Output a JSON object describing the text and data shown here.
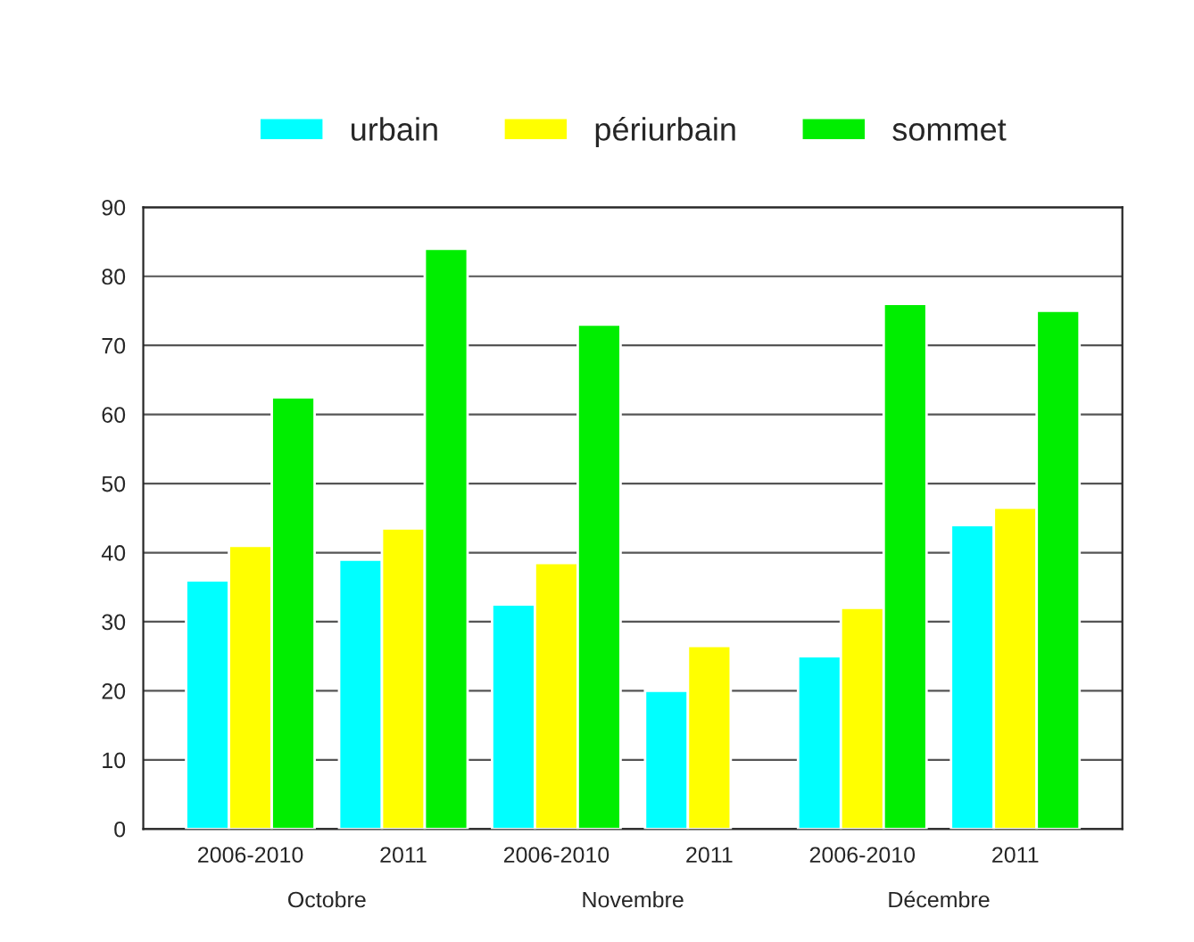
{
  "chart_data": {
    "type": "bar",
    "categories": [
      "2006-2010",
      "2011",
      "2006-2010",
      "2011",
      "2006-2010",
      "2011"
    ],
    "series": [
      {
        "name": "urbain",
        "color": "#00ffff",
        "values": [
          36,
          39,
          32.5,
          20,
          25,
          44
        ]
      },
      {
        "name": "périurbain",
        "color": "#ffff00",
        "values": [
          41,
          43.5,
          38.5,
          26.5,
          32,
          46.5
        ]
      },
      {
        "name": "sommet",
        "color": "#00ee00",
        "values": [
          62.5,
          84,
          73,
          null,
          76,
          75
        ]
      }
    ],
    "annotations": [
      "Octobre",
      "Novembre",
      "Décembre"
    ],
    "ylim": [
      0,
      90
    ],
    "yticks": [
      0,
      10,
      20,
      30,
      40,
      50,
      60,
      70,
      80,
      90
    ],
    "grid": "y",
    "legend": "top"
  }
}
